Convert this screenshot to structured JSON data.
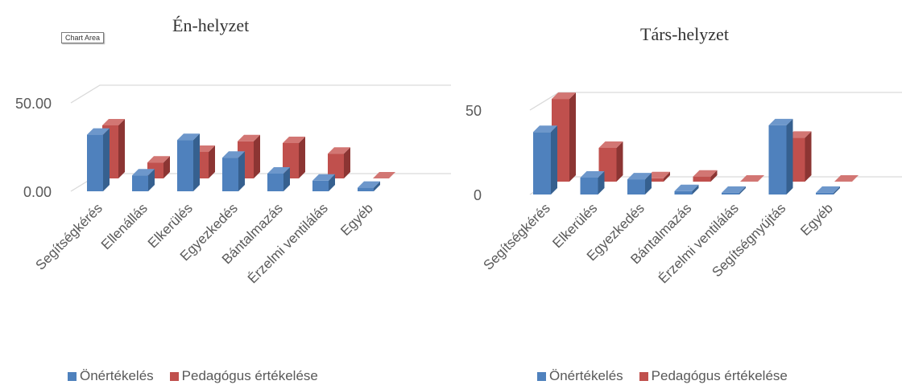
{
  "tooltip": "Chart Area",
  "colors": {
    "series1_front": "#4f81bd",
    "series1_top": "#6d97cb",
    "series1_side": "#36608f",
    "series2_front": "#c0504d",
    "series2_top": "#d27673",
    "series2_side": "#8c3533",
    "grid": "#d9d9d9",
    "text": "#595959"
  },
  "legend": {
    "series1": "Önértékelés",
    "series2": "Pedagógus értékelése"
  },
  "chart_data": [
    {
      "type": "bar",
      "title": "Én-helyzet",
      "categories": [
        "Segítségkérés",
        "Ellenállás",
        "Elkerülés",
        "Egyezkedés",
        "Bántalmazás",
        "Érzelmi ventilálás",
        "Egyéb"
      ],
      "series": [
        {
          "name": "Önértékelés",
          "values": [
            32,
            9,
            29,
            19,
            10,
            6,
            2
          ]
        },
        {
          "name": "Pedagógus értékelése",
          "values": [
            30,
            9,
            15,
            21,
            20,
            14,
            0
          ]
        }
      ],
      "yticks": [
        "0.00",
        "50.00"
      ],
      "ylim": [
        0,
        50
      ],
      "grid": true,
      "legend_position": "bottom"
    },
    {
      "type": "bar",
      "title": "Társ-helyzet",
      "categories": [
        "Segítségkérés",
        "Elkerülés",
        "Egyezkedés",
        "Bántalmazás",
        "Érzelmi ventilálás",
        "Segítségnyújtás",
        "Egyéb"
      ],
      "series": [
        {
          "name": "Önértékelés",
          "values": [
            37,
            10,
            9,
            2,
            1,
            41,
            1
          ]
        },
        {
          "name": "Pedagógus értékelése",
          "values": [
            49,
            20,
            2,
            3,
            0,
            26,
            0
          ]
        }
      ],
      "yticks": [
        "0",
        "50"
      ],
      "ylim": [
        0,
        50
      ],
      "grid": true,
      "legend_position": "bottom"
    }
  ]
}
